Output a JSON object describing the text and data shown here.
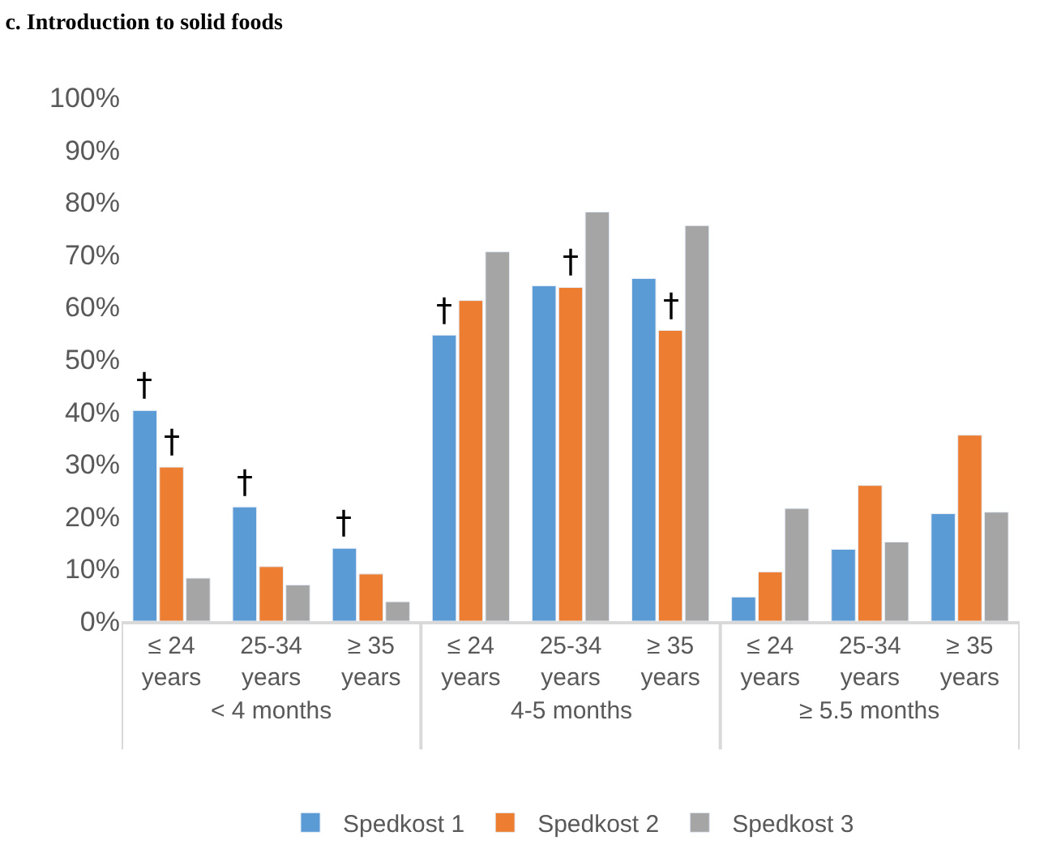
{
  "chart_data": {
    "type": "bar",
    "title": "c. Introduction to solid foods",
    "categories": [
      "≤ 24 years",
      "25-34 years",
      "≥ 35 years",
      "≤ 24 years",
      "25-34 years",
      "≥ 35 years",
      "≤ 24 years",
      "25-34 years",
      "≥ 35 years"
    ],
    "series": [
      {
        "name": "Spedkost 1",
        "color": "#5b9bd5",
        "values": [
          40.2,
          21.8,
          13.9,
          54.6,
          64.0,
          65.4,
          4.6,
          13.7,
          20.5
        ]
      },
      {
        "name": "Spedkost 2",
        "color": "#ed7d31",
        "values": [
          29.4,
          10.4,
          9.0,
          61.2,
          63.7,
          55.5,
          9.4,
          25.9,
          35.5
        ]
      },
      {
        "name": "Spedkost 3",
        "color": "#a5a5a5",
        "values": [
          8.2,
          6.9,
          3.7,
          70.5,
          78.1,
          75.5,
          21.5,
          15.1,
          20.8
        ]
      }
    ],
    "ylim": [
      0,
      100
    ],
    "yticks": [
      {
        "value": 0,
        "label": "0%"
      },
      {
        "value": 10,
        "label": "10%"
      },
      {
        "value": 20,
        "label": "20%"
      },
      {
        "value": 30,
        "label": "30%"
      },
      {
        "value": 40,
        "label": "40%"
      },
      {
        "value": 50,
        "label": "50%"
      },
      {
        "value": 60,
        "label": "60%"
      },
      {
        "value": 70,
        "label": "70%"
      },
      {
        "value": 80,
        "label": "80%"
      },
      {
        "value": 90,
        "label": "90%"
      },
      {
        "value": 100,
        "label": "100%"
      }
    ],
    "grid": false,
    "legend": "bottom",
    "annotations": [
      "< 4 months",
      "4-5 months",
      "≥ 5.5 months",
      "†",
      "†",
      "†",
      "†",
      "†",
      "†",
      "†"
    ]
  }
}
